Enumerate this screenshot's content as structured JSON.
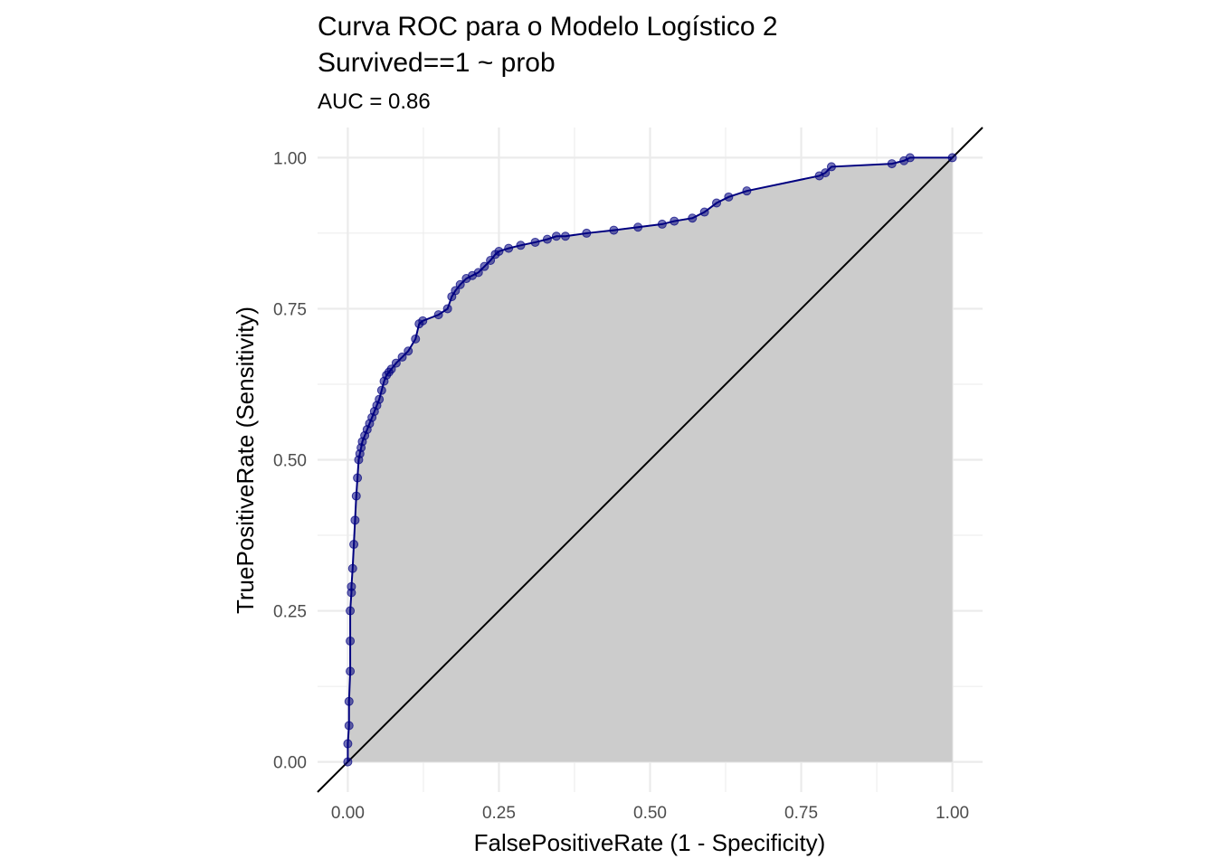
{
  "chart_data": {
    "type": "area",
    "title": "Curva ROC para o Modelo Logístico 2\nSurvived==1 ~ prob",
    "title_lines": [
      "Curva ROC para o Modelo Logístico 2",
      "Survived==1 ~ prob"
    ],
    "subtitle": "AUC = 0.86",
    "xlabel": "FalsePositiveRate (1 - Specificity)",
    "ylabel": "TruePositiveRate (Sensitivity)",
    "xlim": [
      -0.05,
      1.05
    ],
    "ylim": [
      -0.05,
      1.05
    ],
    "x_ticks": [
      0,
      0.25,
      0.5,
      0.75,
      1
    ],
    "x_tick_labels": [
      "0.00",
      "0.25",
      "0.50",
      "0.75",
      "1.00"
    ],
    "y_ticks": [
      0,
      0.25,
      0.5,
      0.75,
      1
    ],
    "y_tick_labels": [
      "0.00",
      "0.25",
      "0.50",
      "0.75",
      "1.00"
    ],
    "grid": true,
    "reference_line": {
      "x": [
        -0.05,
        1.05
      ],
      "y": [
        -0.05,
        1.05
      ],
      "color": "#000000"
    },
    "series": [
      {
        "x": [
          0.0,
          0.0,
          0.002,
          0.002,
          0.004,
          0.004,
          0.004,
          0.006,
          0.006,
          0.008,
          0.01,
          0.012,
          0.014,
          0.016,
          0.018,
          0.02,
          0.022,
          0.024,
          0.028,
          0.032,
          0.036,
          0.04,
          0.044,
          0.048,
          0.052,
          0.056,
          0.06,
          0.064,
          0.068,
          0.072,
          0.08,
          0.09,
          0.1,
          0.112,
          0.118,
          0.124,
          0.15,
          0.165,
          0.172,
          0.178,
          0.186,
          0.196,
          0.206,
          0.216,
          0.226,
          0.236,
          0.244,
          0.25,
          0.266,
          0.286,
          0.31,
          0.33,
          0.345,
          0.36,
          0.395,
          0.44,
          0.48,
          0.52,
          0.54,
          0.57,
          0.59,
          0.61,
          0.63,
          0.66,
          0.78,
          0.79,
          0.8,
          0.9,
          0.92,
          0.93,
          1.0
        ],
        "y": [
          0.0,
          0.03,
          0.06,
          0.1,
          0.15,
          0.2,
          0.25,
          0.28,
          0.29,
          0.32,
          0.36,
          0.4,
          0.44,
          0.47,
          0.5,
          0.51,
          0.52,
          0.53,
          0.54,
          0.55,
          0.56,
          0.57,
          0.58,
          0.59,
          0.6,
          0.615,
          0.63,
          0.64,
          0.645,
          0.65,
          0.66,
          0.67,
          0.68,
          0.7,
          0.725,
          0.73,
          0.74,
          0.75,
          0.77,
          0.78,
          0.79,
          0.8,
          0.805,
          0.81,
          0.82,
          0.83,
          0.84,
          0.845,
          0.85,
          0.855,
          0.86,
          0.865,
          0.87,
          0.87,
          0.875,
          0.88,
          0.885,
          0.89,
          0.895,
          0.9,
          0.91,
          0.925,
          0.935,
          0.945,
          0.97,
          0.975,
          0.985,
          0.99,
          0.995,
          1.0,
          1.0
        ],
        "color": "#000080"
      }
    ],
    "colors": {
      "curve": "#000080",
      "fill": "#cccccc",
      "grid": "#ebebeb",
      "diagonal": "#000000"
    }
  }
}
